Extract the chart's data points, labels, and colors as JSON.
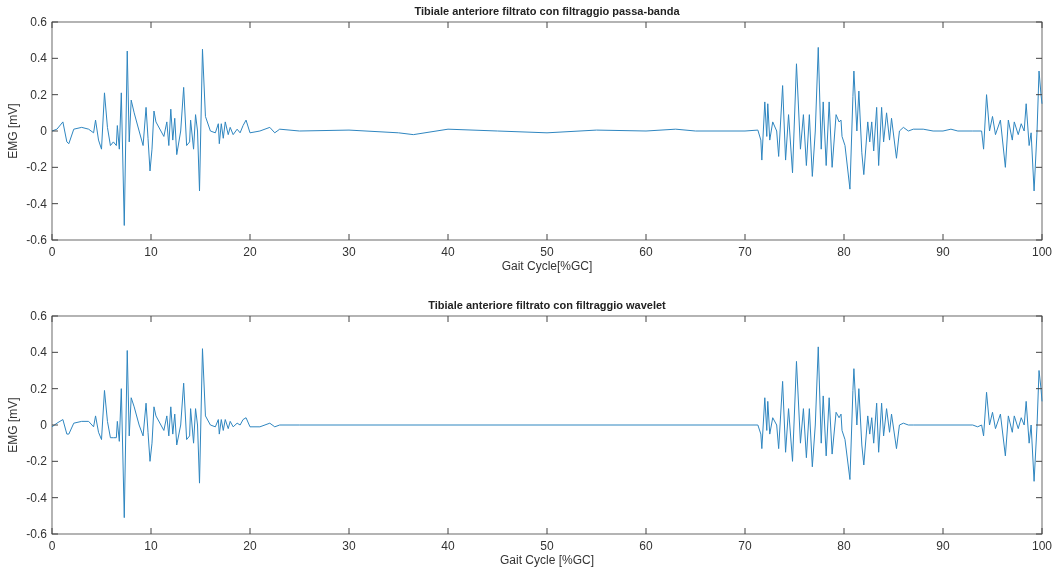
{
  "chart_data": [
    {
      "type": "line",
      "title": "Tibiale anteriore filtrato con filtraggio passa-banda",
      "xlabel": "Gait Cycle[%GC]",
      "ylabel": "EMG [mV]",
      "xlim": [
        0,
        100
      ],
      "ylim": [
        -0.6,
        0.6
      ],
      "xticks": [
        0,
        10,
        20,
        30,
        40,
        50,
        60,
        70,
        80,
        90,
        100
      ],
      "yticks": [
        -0.6,
        -0.4,
        -0.2,
        0,
        0.2,
        0.4,
        0.6
      ],
      "grid": false,
      "x": [
        0,
        0.5,
        1.1,
        1.5,
        1.7,
        2.2,
        3,
        3.7,
        4.2,
        4.4,
        4.7,
        5,
        5.3,
        5.6,
        5.9,
        6.2,
        6.5,
        6.6,
        6.8,
        7,
        7.3,
        7.6,
        7.8,
        8,
        8.3,
        8.8,
        9.2,
        9.5,
        9.7,
        9.9,
        10.1,
        10.3,
        10.5,
        11,
        11.3,
        11.6,
        11.8,
        12,
        12.2,
        12.4,
        12.6,
        13,
        13.3,
        13.6,
        13.9,
        14,
        14.3,
        14.5,
        14.7,
        14.9,
        15.2,
        15.5,
        16,
        16.5,
        16.8,
        16.9,
        17.1,
        17.3,
        17.5,
        17.8,
        18,
        18.3,
        18.7,
        19,
        19.3,
        19.6,
        20,
        21,
        22,
        22.5,
        23,
        25,
        30,
        35,
        36.5,
        40,
        45,
        50,
        55,
        60,
        63,
        65,
        70,
        71.3,
        71.6,
        71.7,
        72,
        72.2,
        72.3,
        72.5,
        72.8,
        73.2,
        73.4,
        73.8,
        74.1,
        74.4,
        74.8,
        75.2,
        75.6,
        75.9,
        76.2,
        76.5,
        76.8,
        77.1,
        77.4,
        77.7,
        77.9,
        78.2,
        78.5,
        78.8,
        79.2,
        79.5,
        79.7,
        79.8,
        80.1,
        80.6,
        80.9,
        81,
        81.3,
        81.5,
        81.8,
        82,
        82.4,
        82.6,
        82.8,
        83,
        83.3,
        83.5,
        83.8,
        84,
        84.3,
        84.6,
        84.8,
        85.3,
        85.6,
        86,
        86.5,
        87,
        88,
        89,
        90,
        90.8,
        91.5,
        93,
        93.9,
        94.1,
        94.4,
        94.7,
        95,
        95.3,
        95.8,
        96.3,
        96.6,
        97,
        97.2,
        97.6,
        97.9,
        98.2,
        98.4,
        98.7,
        98.9,
        99.2,
        99.5,
        99.7,
        99.9,
        100
      ],
      "series": [
        {
          "color": "#2f86c0",
          "values": [
            0,
            0.01,
            0.05,
            -0.06,
            -0.07,
            0.01,
            0.02,
            0.01,
            -0.01,
            0.06,
            -0.05,
            -0.1,
            0.21,
            0.02,
            -0.08,
            -0.06,
            -0.08,
            0.03,
            -0.1,
            0.21,
            -0.52,
            0.44,
            -0.06,
            0.17,
            0.1,
            0,
            -0.08,
            0.13,
            -0.04,
            -0.22,
            -0.1,
            0.11,
            0.05,
            0,
            -0.03,
            0.05,
            -0.08,
            0.12,
            -0.05,
            0.07,
            -0.13,
            0,
            0.24,
            -0.08,
            -0.06,
            0.06,
            -0.1,
            0.09,
            0,
            -0.33,
            0.45,
            0.08,
            0,
            -0.01,
            0.04,
            -0.07,
            0.04,
            -0.04,
            0.05,
            -0.02,
            0.02,
            -0.02,
            0.01,
            -0.01,
            0.03,
            0.06,
            -0.01,
            0,
            0.02,
            -0.01,
            0.01,
            0,
            0.005,
            -0.01,
            -0.02,
            0.01,
            0,
            -0.01,
            0.005,
            0,
            0.01,
            0,
            0,
            0.005,
            -0.05,
            -0.16,
            0.16,
            -0.03,
            0.15,
            -0.05,
            0.05,
            0,
            -0.14,
            0.25,
            -0.16,
            0.09,
            -0.23,
            0.37,
            -0.1,
            0.09,
            -0.19,
            0.09,
            -0.25,
            0,
            0.46,
            -0.1,
            0.16,
            -0.19,
            0.16,
            -0.2,
            0.09,
            0.05,
            0.06,
            -0.03,
            -0.08,
            -0.32,
            0.19,
            0.33,
            0,
            0.22,
            -0.12,
            -0.24,
            0.05,
            -0.06,
            0.05,
            -0.11,
            0.13,
            -0.19,
            0.13,
            -0.06,
            0.1,
            -0.05,
            0.07,
            -0.15,
            0,
            0.02,
            0,
            0.01,
            0.01,
            0,
            0,
            0.01,
            0,
            0,
            0,
            -0.1,
            0.2,
            0,
            0.08,
            -0.02,
            0.06,
            -0.2,
            0.06,
            -0.05,
            0.05,
            -0.02,
            0.04,
            0,
            0.15,
            -0.08,
            -0.01,
            -0.33,
            0,
            0.33,
            0.2,
            0.15
          ]
        }
      ]
    },
    {
      "type": "line",
      "title": "Tibiale anteriore filtrato con filtraggio wavelet",
      "xlabel": "Gait Cycle [%GC]",
      "ylabel": "EMG [mV]",
      "xlim": [
        0,
        100
      ],
      "ylim": [
        -0.6,
        0.6
      ],
      "xticks": [
        0,
        10,
        20,
        30,
        40,
        50,
        60,
        70,
        80,
        90,
        100
      ],
      "yticks": [
        -0.6,
        -0.4,
        -0.2,
        0,
        0.2,
        0.4,
        0.6
      ],
      "grid": false,
      "x": [
        0,
        0.5,
        1.1,
        1.5,
        1.7,
        2.2,
        3,
        3.7,
        4.2,
        4.4,
        4.7,
        5,
        5.3,
        5.6,
        5.9,
        6.2,
        6.5,
        6.6,
        6.8,
        7,
        7.3,
        7.6,
        7.8,
        8,
        8.3,
        8.8,
        9.2,
        9.5,
        9.7,
        9.9,
        10.1,
        10.3,
        10.5,
        11,
        11.3,
        11.6,
        11.8,
        12,
        12.2,
        12.4,
        12.6,
        13,
        13.3,
        13.6,
        13.9,
        14,
        14.3,
        14.5,
        14.7,
        14.9,
        15.2,
        15.5,
        16,
        16.5,
        16.8,
        16.9,
        17.1,
        17.3,
        17.5,
        17.8,
        18,
        18.3,
        18.7,
        19,
        19.3,
        19.6,
        20,
        21,
        22,
        22.5,
        23,
        25,
        70,
        71.3,
        71.6,
        71.7,
        72,
        72.2,
        72.3,
        72.5,
        72.8,
        73.2,
        73.4,
        73.8,
        74.1,
        74.4,
        74.8,
        75.2,
        75.6,
        75.9,
        76.2,
        76.5,
        76.8,
        77.1,
        77.4,
        77.7,
        77.9,
        78.2,
        78.5,
        78.8,
        79.2,
        79.5,
        79.7,
        79.8,
        80.1,
        80.6,
        80.9,
        81,
        81.3,
        81.5,
        81.8,
        82,
        82.4,
        82.6,
        82.8,
        83,
        83.3,
        83.5,
        83.8,
        84,
        84.3,
        84.6,
        84.8,
        85.3,
        85.6,
        86,
        86.5,
        87,
        93,
        93.5,
        93.9,
        94.1,
        94.4,
        94.7,
        95,
        95.3,
        95.8,
        96.3,
        96.6,
        97,
        97.2,
        97.6,
        97.9,
        98.2,
        98.4,
        98.7,
        98.9,
        99.2,
        99.5,
        99.7,
        99.9,
        100
      ],
      "series": [
        {
          "color": "#2f86c0",
          "values": [
            -0.01,
            0.01,
            0.03,
            -0.05,
            -0.05,
            0.01,
            0.02,
            0.02,
            -0.01,
            0.05,
            -0.04,
            -0.08,
            0.19,
            0.02,
            -0.07,
            -0.07,
            -0.07,
            0.02,
            -0.09,
            0.2,
            -0.51,
            0.41,
            -0.06,
            0.15,
            0.1,
            0,
            -0.06,
            0.12,
            -0.04,
            -0.2,
            -0.1,
            0.1,
            0.05,
            0,
            -0.03,
            0.05,
            -0.06,
            0.1,
            -0.05,
            0.06,
            -0.11,
            0,
            0.23,
            -0.08,
            -0.06,
            0.09,
            -0.1,
            0.09,
            0,
            -0.32,
            0.42,
            0.05,
            0,
            -0.01,
            0.03,
            -0.05,
            0.03,
            -0.03,
            0.03,
            -0.02,
            0.02,
            -0.01,
            0.01,
            0,
            0.03,
            0.04,
            -0.01,
            -0.01,
            0.01,
            -0.01,
            0,
            0,
            0,
            0,
            -0.05,
            -0.13,
            0.15,
            -0.03,
            0.13,
            -0.05,
            0.04,
            0,
            -0.13,
            0.24,
            -0.15,
            0.09,
            -0.2,
            0.35,
            -0.1,
            0.09,
            -0.18,
            0.09,
            -0.23,
            0,
            0.43,
            -0.1,
            0.16,
            -0.17,
            0.15,
            -0.16,
            0.07,
            0.04,
            0.06,
            -0.03,
            -0.08,
            -0.3,
            0.19,
            0.31,
            0,
            0.2,
            -0.11,
            -0.22,
            0.05,
            -0.05,
            0.04,
            -0.1,
            0.12,
            -0.15,
            0.12,
            -0.06,
            0.09,
            -0.04,
            0.06,
            -0.13,
            0,
            0.01,
            0,
            0,
            0,
            -0.01,
            0,
            -0.06,
            0.18,
            0,
            0.07,
            -0.02,
            0.06,
            -0.17,
            0.05,
            -0.04,
            0.05,
            -0.02,
            0.04,
            0,
            0.13,
            -0.1,
            0,
            -0.31,
            0,
            0.3,
            0.2,
            0.13
          ]
        }
      ]
    }
  ]
}
